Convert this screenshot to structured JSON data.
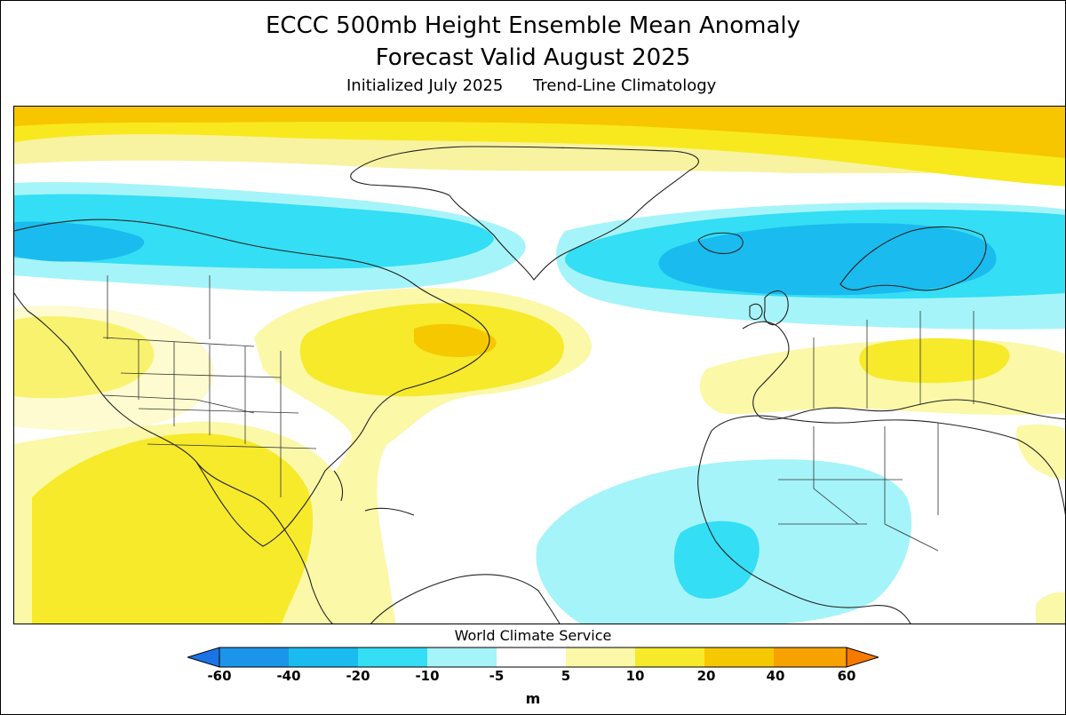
{
  "header": {
    "title_line1": "ECCC 500mb Height Ensemble Mean Anomaly",
    "title_line2": "Forecast Valid August 2025",
    "subtitle_left": "Initialized July 2025",
    "subtitle_right": "Trend-Line Climatology"
  },
  "credit": "World Climate Service",
  "colorbar": {
    "unit": "m",
    "ticks": [
      "-60",
      "-40",
      "-20",
      "-10",
      "-5",
      "5",
      "10",
      "20",
      "40",
      "60"
    ],
    "colors": [
      "#1b74e6",
      "#1aa7ea",
      "#2fd3f0",
      "#9ef3f7",
      "#ffffff",
      "#fbf7a2",
      "#f7ea1e",
      "#f7c600",
      "#f79400",
      "#f79400"
    ],
    "legend_colors": {
      "below_-60": "#1b74e6",
      "-60_-40": "#1b95ea",
      "-40_-20": "#1abbee",
      "-20_-10": "#34def4",
      "-10_-5": "#a5f4f9",
      "-5_5": "#ffffff",
      "5_10": "#fbf8a8",
      "10_20": "#f6ea2a",
      "20_40": "#f6c800",
      "40_60": "#f7a200",
      "above_60": "#f67a00"
    }
  }
}
